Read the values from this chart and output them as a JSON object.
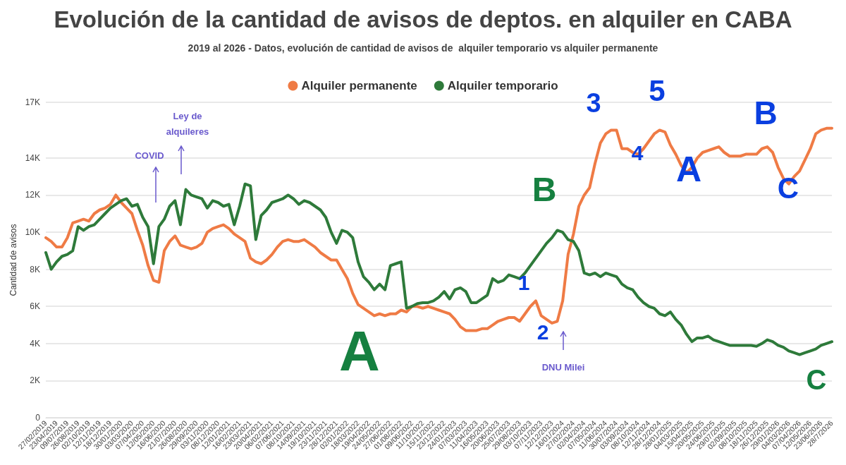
{
  "chart_data": {
    "type": "line",
    "title": "Evolución de la cantidad de avisos de deptos. en alquiler en CABA",
    "subtitle": "2019 al 2026 - Datos, evolución de cantidad de avisos de  alquiler temporario vs alquiler permanente",
    "ylabel": "Cantidad de avisos",
    "categories": [
      "27/02/2019",
      null,
      "23/04/2019",
      null,
      "09/07/2019",
      null,
      "26/08/2019",
      null,
      "02/10/2019",
      null,
      "12/11/2019",
      null,
      "18/12/2019",
      null,
      "30/01/2020",
      null,
      "03/03/2020",
      null,
      "07/04/2020",
      null,
      "12/05/2020",
      null,
      "16/06/2020",
      null,
      "21/07/2020",
      null,
      "26/08/2020",
      null,
      "29/09/2020",
      null,
      "03/11/2020",
      null,
      "08/12/2020",
      null,
      "12/01/2021",
      null,
      "16/02/2021",
      null,
      "23/03/2021",
      null,
      "20/04/2021",
      null,
      "06/02/2021",
      null,
      "07/06/2021",
      null,
      "08/10/2021",
      null,
      "14/09/2021",
      null,
      "19/10/2021",
      null,
      "23/11/2021",
      null,
      "28/12/2021",
      null,
      "02/01/2022",
      null,
      "18/03/2022",
      null,
      "19/04/2022",
      null,
      "24/05/2022",
      null,
      "27/06/2022",
      null,
      "01/08/2022",
      null,
      "09/06/2022",
      null,
      "11/10/2022",
      null,
      "15/11/2022",
      null,
      "23/12/2022",
      null,
      "24/01/2023",
      null,
      "07/03/2023",
      null,
      "11/04/2023",
      null,
      "16/05/2023",
      null,
      "20/06/2023",
      null,
      "25/07/2023",
      null,
      "29/08/2023",
      null,
      "03/10/2023",
      null,
      "07/11/2023",
      null,
      "12/12/2023",
      null,
      "16/01/2024",
      null,
      "27/02/2024",
      null,
      "02/04/2024",
      null,
      "07/05/2024",
      null,
      "11/06/2024",
      null,
      "30/07/2024",
      null,
      "03/09/2024",
      null,
      "08/10/2024",
      null,
      "12/11/2024",
      null,
      "28/12/2024",
      null,
      "28/01/2025",
      null,
      "04/03/2025",
      null,
      "15/04/2025",
      null,
      "20/05/2025",
      null,
      "24/06/2025",
      null,
      "29/07/2025",
      null,
      "02/09/2025",
      null,
      "08/10/2025",
      null,
      "18/11/2025",
      null,
      "26/12/2025",
      null,
      "29/01/2026",
      null,
      "04/03/2026",
      null,
      "07/04/2026",
      null,
      "12/05/2026",
      null,
      "23/06/2026",
      null,
      "28/7/2026"
    ],
    "series": [
      {
        "name": "Alquiler permanente",
        "color": "#ef7b45",
        "values": [
          9700,
          9500,
          9200,
          9200,
          9700,
          10500,
          10600,
          10700,
          10600,
          11000,
          11200,
          11300,
          11500,
          12000,
          11600,
          11300,
          11000,
          10100,
          9300,
          8200,
          7400,
          7300,
          9000,
          9500,
          9800,
          9300,
          9200,
          9100,
          9200,
          9400,
          10000,
          10200,
          10300,
          10400,
          10200,
          9900,
          9700,
          9500,
          8600,
          8400,
          8300,
          8500,
          8800,
          9200,
          9500,
          9600,
          9500,
          9500,
          9600,
          9400,
          9200,
          8900,
          8700,
          8500,
          8500,
          8000,
          7500,
          6700,
          6100,
          5900,
          5700,
          5500,
          5600,
          5500,
          5600,
          5600,
          5800,
          5700,
          6000,
          6000,
          5900,
          6000,
          5900,
          5800,
          5700,
          5600,
          5300,
          4900,
          4700,
          4700,
          4700,
          4800,
          4800,
          5000,
          5200,
          5300,
          5400,
          5400,
          5200,
          5600,
          6000,
          6300,
          5500,
          5300,
          5100,
          5200,
          6300,
          8800,
          9900,
          11400,
          12000,
          12400,
          13700,
          14800,
          15300,
          15500,
          15500,
          14500,
          14500,
          14300,
          14200,
          14500,
          14900,
          15300,
          15500,
          15400,
          14700,
          14200,
          13600,
          13200,
          13500,
          14000,
          14300,
          14400,
          14500,
          14600,
          14300,
          14100,
          14100,
          14100,
          14200,
          14200,
          14200,
          14500,
          14600,
          14300,
          13500,
          12900,
          12600,
          13000,
          13300,
          13900,
          14500,
          15300,
          15500,
          15600,
          15600
        ]
      },
      {
        "name": "Alquiler temporario",
        "color": "#2e7a3a",
        "values": [
          8900,
          8000,
          8400,
          8700,
          8800,
          9000,
          10300,
          10100,
          10300,
          10400,
          10700,
          11000,
          11300,
          11500,
          11700,
          11800,
          11400,
          11500,
          10800,
          10300,
          8300,
          10300,
          10700,
          11400,
          11700,
          10400,
          12300,
          12000,
          11900,
          11800,
          11300,
          11700,
          11600,
          11400,
          11500,
          10400,
          11400,
          12600,
          12500,
          9600,
          10900,
          11200,
          11600,
          11700,
          11800,
          12000,
          11800,
          11500,
          11700,
          11600,
          11400,
          11200,
          10800,
          10000,
          9400,
          10100,
          10000,
          9700,
          8400,
          7600,
          7300,
          6900,
          7200,
          6900,
          8200,
          8300,
          8400,
          5900,
          6000,
          6150,
          6200,
          6200,
          6300,
          6500,
          6800,
          6400,
          6900,
          7000,
          6800,
          6200,
          6200,
          6400,
          6600,
          7500,
          7300,
          7400,
          7700,
          7600,
          7500,
          7800,
          8200,
          8600,
          9000,
          9400,
          9700,
          10100,
          10000,
          9600,
          9500,
          9000,
          7800,
          7700,
          7800,
          7600,
          7800,
          7700,
          7600,
          7200,
          7000,
          6900,
          6500,
          6200,
          6000,
          5900,
          5600,
          5500,
          5700,
          5300,
          5000,
          4500,
          4100,
          4300,
          4300,
          4400,
          4200,
          4100,
          4000,
          3900,
          3900,
          3900,
          3900,
          3900,
          3850,
          4000,
          4200,
          4100,
          3900,
          3800,
          3600,
          3500,
          3400,
          3500,
          3600,
          3700,
          3900,
          4000,
          4100
        ]
      }
    ],
    "ylim": [
      0,
      17000
    ],
    "yticks": [
      0,
      {
        "value": 2000,
        "label": "2K"
      },
      {
        "value": 4000,
        "label": "4K"
      },
      {
        "value": 6000,
        "label": "6K"
      },
      {
        "value": 8000,
        "label": "8K"
      },
      {
        "value": 10000,
        "label": "10K"
      },
      {
        "value": 12000,
        "label": "12K"
      },
      {
        "value": 14000,
        "label": "14K"
      },
      {
        "value": 17000,
        "label": "17K"
      }
    ],
    "annotations": [
      "COVID",
      "Ley de\nalquileres",
      "DNU Milei",
      "A",
      "B",
      "C",
      "1",
      "2",
      "3",
      "4",
      "5",
      "A",
      "B",
      "C"
    ],
    "grid": "y",
    "legend": "top",
    "marker": "none",
    "line_style": "solid"
  }
}
